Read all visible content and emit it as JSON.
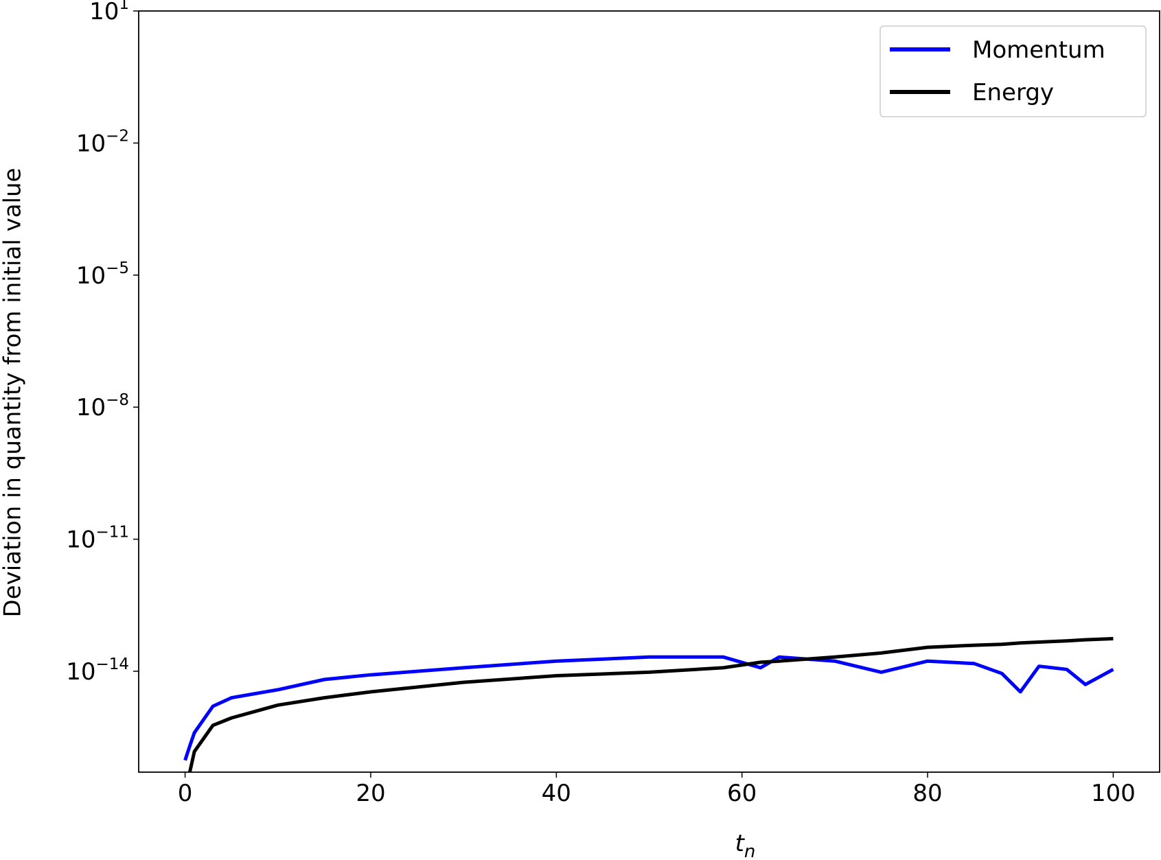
{
  "chart_data": {
    "type": "line",
    "xlabel": "t_n",
    "ylabel": "Deviation in quantity from initial value",
    "log_y": true,
    "grid": false,
    "legend": "upper right",
    "xlim": [
      -5,
      105
    ],
    "xticks": [
      0,
      20,
      40,
      60,
      80,
      100
    ],
    "ylim": [
      5.1e-17,
      10
    ],
    "yticks": [
      {
        "value": 10,
        "label": "10^1"
      },
      {
        "value": 0.01,
        "label": "10^−2"
      },
      {
        "value": 1e-05,
        "label": "10^−5"
      },
      {
        "value": 1e-08,
        "label": "10^−8"
      },
      {
        "value": 1e-11,
        "label": "10^−11"
      },
      {
        "value": 1e-14,
        "label": "10^−14"
      }
    ],
    "x": [
      0,
      0.5,
      1,
      3,
      5,
      10,
      15,
      20,
      30,
      40,
      50,
      58,
      62,
      64,
      70,
      75,
      80,
      85,
      88,
      90,
      92,
      95,
      97,
      100
    ],
    "series": [
      {
        "name": "Momentum",
        "color": "#0000ff",
        "values": [
          9.5e-17,
          2e-16,
          4e-16,
          1.6e-15,
          2.5e-15,
          3.8e-15,
          6.5e-15,
          8.3e-15,
          1.2e-14,
          1.7e-14,
          2.1e-14,
          2.1e-14,
          1.2e-14,
          2.1e-14,
          1.7e-14,
          9.5e-15,
          1.7e-14,
          1.5e-14,
          8.9e-15,
          3.4e-15,
          1.3e-14,
          1.1e-14,
          5e-15,
          1.1e-14
        ]
      },
      {
        "name": "Energy",
        "color": "#000000",
        "values": [
          null,
          5.1e-17,
          1.5e-16,
          5.9e-16,
          8.7e-16,
          1.7e-15,
          2.5e-15,
          3.4e-15,
          5.6e-15,
          7.9e-15,
          9.5e-15,
          1.2e-14,
          1.6e-14,
          1.7e-14,
          2.1e-14,
          2.6e-14,
          3.5e-14,
          3.9e-14,
          4.1e-14,
          4.4e-14,
          4.6e-14,
          4.9e-14,
          5.2e-14,
          5.5e-14
        ]
      }
    ]
  }
}
